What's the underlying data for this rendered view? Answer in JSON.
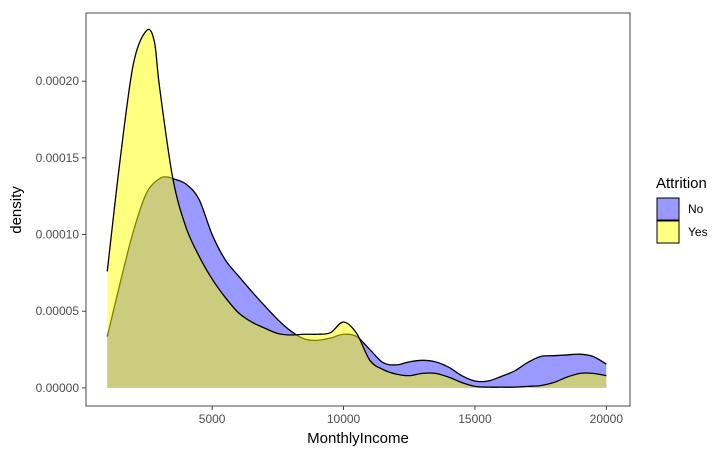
{
  "chart_data": {
    "type": "area",
    "title": "",
    "xlabel": "MonthlyIncome",
    "ylabel": "density",
    "xlim": [
      200,
      20900
    ],
    "ylim": [
      -1.18e-05,
      0.0002445
    ],
    "x_ticks": [
      5000,
      10000,
      15000,
      20000
    ],
    "x_tick_labels": [
      "5000",
      "10000",
      "15000",
      "20000"
    ],
    "y_ticks": [
      0,
      5e-05,
      0.0001,
      0.00015,
      0.0002
    ],
    "y_tick_labels": [
      "0.00000",
      "0.00005",
      "0.00010",
      "0.00015",
      "0.00020"
    ],
    "grid": false,
    "legend": {
      "title": "Attrition",
      "placement": "right",
      "entries": [
        {
          "label": "No",
          "color": "#9999ff"
        },
        {
          "label": "Yes",
          "color": "#ffff80"
        }
      ]
    },
    "series": [
      {
        "name": "No",
        "fill": "#0000ff",
        "opacity": 0.4,
        "x": [
          1009,
          1500,
          2000,
          2500,
          3000,
          3300,
          3500,
          4000,
          4500,
          5000,
          5500,
          6000,
          6500,
          7000,
          7500,
          8000,
          8500,
          9000,
          9500,
          10000,
          10500,
          11000,
          11500,
          12000,
          12500,
          13000,
          13500,
          14000,
          14500,
          15000,
          15500,
          16000,
          16500,
          17000,
          17500,
          18000,
          18500,
          19000,
          19500,
          19999
        ],
        "y": [
          3.35e-05,
          6.85e-05,
          0.000102,
          0.000127,
          0.0001365,
          0.0001375,
          0.0001365,
          0.000133,
          0.000123,
          0.0001,
          8.35e-05,
          7.3e-05,
          6.3e-05,
          5.35e-05,
          4.45e-05,
          3.7e-05,
          3.2e-05,
          3.1e-05,
          3.25e-05,
          3.5e-05,
          3.35e-05,
          2.5e-05,
          1.65e-05,
          1.5e-05,
          1.7e-05,
          1.8e-05,
          1.7e-05,
          1.35e-05,
          8e-06,
          4.5e-06,
          4.5e-06,
          7.5e-06,
          1.1e-05,
          1.65e-05,
          2.05e-05,
          2.1e-05,
          2.15e-05,
          2.2e-05,
          2.05e-05,
          1.55e-05
        ]
      },
      {
        "name": "Yes",
        "fill": "#ffff00",
        "opacity": 0.5,
        "x": [
          1009,
          1500,
          2000,
          2500,
          2800,
          3000,
          3500,
          4000,
          4500,
          5000,
          5500,
          6000,
          6500,
          7000,
          7500,
          8000,
          8500,
          9000,
          9500,
          10000,
          10500,
          11000,
          11500,
          12000,
          12500,
          13000,
          13500,
          14000,
          14500,
          15000,
          15500,
          16000,
          16500,
          17000,
          17500,
          18000,
          18500,
          19000,
          19500,
          19999
        ],
        "y": [
          7.6e-05,
          0.000149,
          0.000211,
          0.000233,
          0.000226,
          0.000196,
          0.000137,
          0.000105,
          8.6e-05,
          7.1e-05,
          5.9e-05,
          4.9e-05,
          4.3e-05,
          3.9e-05,
          3.55e-05,
          3.45e-05,
          3.5e-05,
          3.5e-05,
          3.6e-05,
          4.3e-05,
          3.55e-05,
          1.8e-05,
          1.2e-05,
          9e-06,
          8e-06,
          9.5e-06,
          9.5e-06,
          7e-06,
          3.5e-06,
          1e-06,
          5e-07,
          5e-07,
          5e-07,
          1e-06,
          1.5e-06,
          3.5e-06,
          7e-06,
          9.5e-06,
          9.5e-06,
          8e-06
        ]
      }
    ]
  }
}
